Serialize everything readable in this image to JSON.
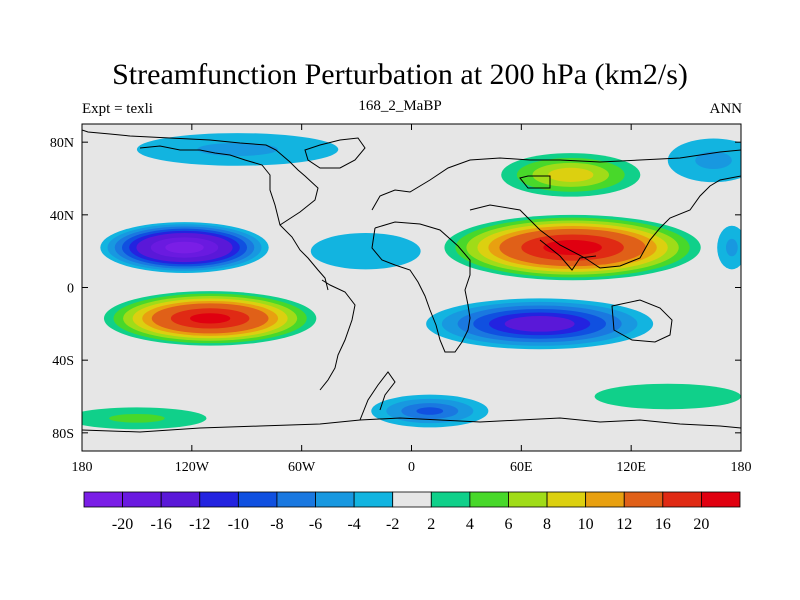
{
  "header": {
    "title": "Streamfunction Perturbation at 200 hPa (km2/s)",
    "left": "Expt = texli",
    "center": "168_2_MaBP",
    "right": "ANN"
  },
  "chart_data": {
    "type": "heatmap",
    "title": "Streamfunction Perturbation at 200 hPa (km2/s)",
    "units": "km2/s",
    "xlim": [
      -180,
      180
    ],
    "ylim": [
      -90,
      90
    ],
    "x_ticks": [
      {
        "value": -180,
        "label": "180"
      },
      {
        "value": -120,
        "label": "120W"
      },
      {
        "value": -60,
        "label": "60W"
      },
      {
        "value": 0,
        "label": "0"
      },
      {
        "value": 60,
        "label": "60E"
      },
      {
        "value": 120,
        "label": "120E"
      },
      {
        "value": 180,
        "label": "180"
      }
    ],
    "y_ticks": [
      {
        "value": 80,
        "label": "80N"
      },
      {
        "value": 40,
        "label": "40N"
      },
      {
        "value": 0,
        "label": "0"
      },
      {
        "value": -40,
        "label": "40S"
      },
      {
        "value": -80,
        "label": "80S"
      }
    ],
    "contour_levels": [
      -20,
      -16,
      -12,
      -10,
      -8,
      -6,
      -4,
      -2,
      2,
      4,
      6,
      8,
      10,
      12,
      16,
      20
    ],
    "colorbar_labels": [
      "-20",
      "-16",
      "-12",
      "-10",
      "-8",
      "-6",
      "-4",
      "-2",
      "2",
      "4",
      "6",
      "8",
      "10",
      "12",
      "16",
      "20"
    ],
    "colors": [
      "#7a1ee6",
      "#6a1ae0",
      "#5a18d8",
      "#2323e0",
      "#1050e0",
      "#1a78e0",
      "#1898e0",
      "#12b4e0",
      "#e6e6e6",
      "#10d08a",
      "#48d82a",
      "#a0dc18",
      "#dcd010",
      "#e8a010",
      "#e06018",
      "#e02a14",
      "#e00010"
    ],
    "features": [
      {
        "name": "north-pacific-low",
        "lon": -124,
        "lat": 22,
        "rx_deg": 46,
        "ry_deg": 14,
        "peak": -22
      },
      {
        "name": "south-pacific-high",
        "lon": -110,
        "lat": -17,
        "rx_deg": 58,
        "ry_deg": 15,
        "peak": 21
      },
      {
        "name": "asian-high",
        "lon": 88,
        "lat": 22,
        "rx_deg": 70,
        "ry_deg": 18,
        "peak": 22
      },
      {
        "name": "indian-ocean-low",
        "lon": 70,
        "lat": -20,
        "rx_deg": 62,
        "ry_deg": 14,
        "peak": -14
      },
      {
        "name": "siberian-high",
        "lon": 87,
        "lat": 62,
        "rx_deg": 38,
        "ry_deg": 12,
        "peak": 9
      },
      {
        "name": "north-atlantic-low",
        "lon": -95,
        "lat": 76,
        "rx_deg": 55,
        "ry_deg": 9,
        "peak": -4
      },
      {
        "name": "arctic-pacific-low",
        "lon": 165,
        "lat": 70,
        "rx_deg": 25,
        "ry_deg": 12,
        "peak": -4
      },
      {
        "name": "southern-atlantic-low",
        "lon": 10,
        "lat": -68,
        "rx_deg": 32,
        "ry_deg": 9,
        "peak": -8
      },
      {
        "name": "southern-pacific-high",
        "lon": -150,
        "lat": -72,
        "rx_deg": 38,
        "ry_deg": 6,
        "peak": 4
      },
      {
        "name": "southern-indian-high",
        "lon": 140,
        "lat": -60,
        "rx_deg": 40,
        "ry_deg": 7,
        "peak": 3
      },
      {
        "name": "north-pacific-east-low",
        "lon": 175,
        "lat": 22,
        "rx_deg": 8,
        "ry_deg": 12,
        "peak": -4
      },
      {
        "name": "atlantic-tropical-low",
        "lon": -25,
        "lat": 20,
        "rx_deg": 30,
        "ry_deg": 10,
        "peak": -3
      }
    ]
  }
}
